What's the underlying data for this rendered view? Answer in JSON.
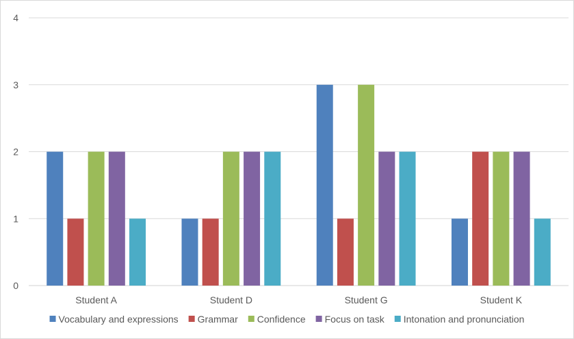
{
  "chart_data": {
    "type": "bar",
    "title": "",
    "xlabel": "",
    "ylabel": "",
    "categories": [
      "Student A",
      "Student D",
      "Student G",
      "Student K"
    ],
    "series": [
      {
        "name": "Vocabulary and expressions",
        "color": "#4f81bd",
        "values": [
          2,
          1,
          3,
          1
        ]
      },
      {
        "name": "Grammar",
        "color": "#c0504d",
        "values": [
          1,
          1,
          1,
          2
        ]
      },
      {
        "name": "Confidence",
        "color": "#9bbb59",
        "values": [
          2,
          2,
          3,
          2
        ]
      },
      {
        "name": "Focus on task",
        "color": "#8064a2",
        "values": [
          2,
          2,
          2,
          2
        ]
      },
      {
        "name": "Intonation and pronunciation",
        "color": "#4bacc6",
        "values": [
          1,
          2,
          2,
          1
        ]
      }
    ],
    "ylim": [
      0,
      4
    ],
    "yticks": [
      "0",
      "1",
      "2",
      "3",
      "4"
    ],
    "grid": true,
    "legend": "bottom"
  }
}
